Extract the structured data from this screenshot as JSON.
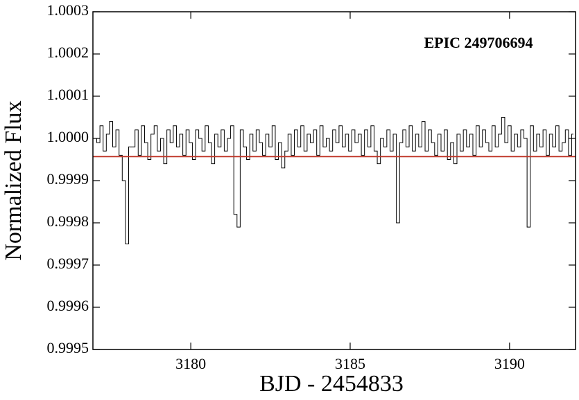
{
  "chart_data": {
    "type": "line",
    "annotation": "EPIC 249706694",
    "xlabel": "BJD - 2454833",
    "ylabel": "Normalized Flux",
    "xlim": [
      3176.93,
      3192.07
    ],
    "xticks": [
      3180,
      3185,
      3190
    ],
    "ylim": [
      0.9995,
      1.0003
    ],
    "yticks": [
      0.9995,
      0.9996,
      0.9997,
      0.9998,
      0.9999,
      {
        "value": 1,
        "label": "1.0000"
      },
      1.0001,
      1.0002,
      1.0003
    ],
    "color": "#000000",
    "reference_line": {
      "value": 0.999957,
      "color": "#c0392b"
    },
    "x": [
      3177.0,
      3177.1,
      3177.2,
      3177.3,
      3177.4,
      3177.5,
      3177.6,
      3177.7,
      3177.8,
      3177.9,
      3178.0,
      3178.1,
      3178.2,
      3178.3,
      3178.4,
      3178.5,
      3178.6,
      3178.7,
      3178.8,
      3178.9,
      3179.0,
      3179.1,
      3179.2,
      3179.3,
      3179.4,
      3179.5,
      3179.6,
      3179.7,
      3179.8,
      3179.9,
      3180.0,
      3180.1,
      3180.2,
      3180.3,
      3180.4,
      3180.5,
      3180.6,
      3180.7,
      3180.8,
      3180.9,
      3181.0,
      3181.1,
      3181.2,
      3181.3,
      3181.4,
      3181.5,
      3181.6,
      3181.7,
      3181.8,
      3181.9,
      3182.0,
      3182.1,
      3182.2,
      3182.3,
      3182.4,
      3182.5,
      3182.6,
      3182.7,
      3182.8,
      3182.9,
      3183.0,
      3183.1,
      3183.2,
      3183.3,
      3183.4,
      3183.5,
      3183.6,
      3183.7,
      3183.8,
      3183.9,
      3184.0,
      3184.1,
      3184.2,
      3184.3,
      3184.4,
      3184.5,
      3184.6,
      3184.7,
      3184.8,
      3184.9,
      3185.0,
      3185.1,
      3185.2,
      3185.3,
      3185.4,
      3185.5,
      3185.6,
      3185.7,
      3185.8,
      3185.9,
      3186.0,
      3186.1,
      3186.2,
      3186.3,
      3186.4,
      3186.5,
      3186.6,
      3186.7,
      3186.8,
      3186.9,
      3187.0,
      3187.1,
      3187.2,
      3187.3,
      3187.4,
      3187.5,
      3187.6,
      3187.7,
      3187.8,
      3187.9,
      3188.0,
      3188.1,
      3188.2,
      3188.3,
      3188.4,
      3188.5,
      3188.6,
      3188.7,
      3188.8,
      3188.9,
      3189.0,
      3189.1,
      3189.2,
      3189.3,
      3189.4,
      3189.5,
      3189.6,
      3189.7,
      3189.8,
      3189.9,
      3190.0,
      3190.1,
      3190.2,
      3190.3,
      3190.4,
      3190.5,
      3190.6,
      3190.7,
      3190.8,
      3190.9,
      3191.0,
      3191.1,
      3191.2,
      3191.3,
      3191.4,
      3191.5,
      3191.6,
      3191.7,
      3191.8,
      3191.9,
      3192.0
    ],
    "values": [
      1.0,
      0.99999,
      1.00003,
      0.99997,
      1.00001,
      1.00004,
      0.99998,
      1.00002,
      0.99996,
      0.9999,
      0.99975,
      0.99998,
      0.99998,
      1.00002,
      0.99996,
      1.00003,
      0.99999,
      0.99995,
      1.00001,
      1.00003,
      0.99997,
      1.0,
      0.99994,
      1.00002,
      0.99999,
      1.00003,
      0.99998,
      1.00001,
      0.99996,
      1.00002,
      0.99999,
      0.99995,
      1.00002,
      1.0,
      0.99997,
      1.00003,
      0.99999,
      0.99994,
      1.00001,
      0.99998,
      1.00002,
      0.99997,
      1.0,
      1.00003,
      0.99982,
      0.99979,
      1.00002,
      0.99998,
      0.99995,
      1.00001,
      0.99997,
      1.00002,
      0.99999,
      0.99996,
      1.00001,
      0.99998,
      1.00003,
      0.99995,
      0.99999,
      0.99993,
      0.99997,
      1.00001,
      0.99996,
      1.00002,
      0.99998,
      1.00003,
      0.99997,
      1.00001,
      0.99999,
      1.00002,
      0.99996,
      1.00003,
      0.99998,
      1.0,
      0.99997,
      1.00002,
      0.99999,
      1.00003,
      0.99998,
      1.00001,
      0.99997,
      1.00002,
      0.99999,
      1.00001,
      0.99996,
      1.00002,
      0.99998,
      1.00003,
      0.99997,
      0.99994,
      1.0,
      0.99998,
      1.00002,
      0.99997,
      1.00001,
      0.9998,
      0.99999,
      1.00002,
      0.99998,
      1.00003,
      0.99997,
      1.00001,
      0.99998,
      1.00004,
      0.99997,
      1.00002,
      0.99999,
      0.99996,
      1.00001,
      0.99997,
      1.00002,
      0.99995,
      0.99999,
      0.99994,
      1.00001,
      0.99997,
      1.00002,
      0.99998,
      1.00001,
      0.99996,
      1.00003,
      0.99998,
      1.00002,
      0.99999,
      0.99997,
      1.00003,
      0.99998,
      1.00001,
      1.00005,
      0.99999,
      1.00003,
      0.99997,
      1.00001,
      0.99998,
      1.00002,
      1.0,
      0.99979,
      1.00003,
      0.99997,
      1.00001,
      0.99998,
      1.00002,
      0.99996,
      1.00001,
      0.99998,
      1.00003,
      0.99997,
      0.99999,
      1.00002,
      0.99996,
      1.00001
    ]
  }
}
